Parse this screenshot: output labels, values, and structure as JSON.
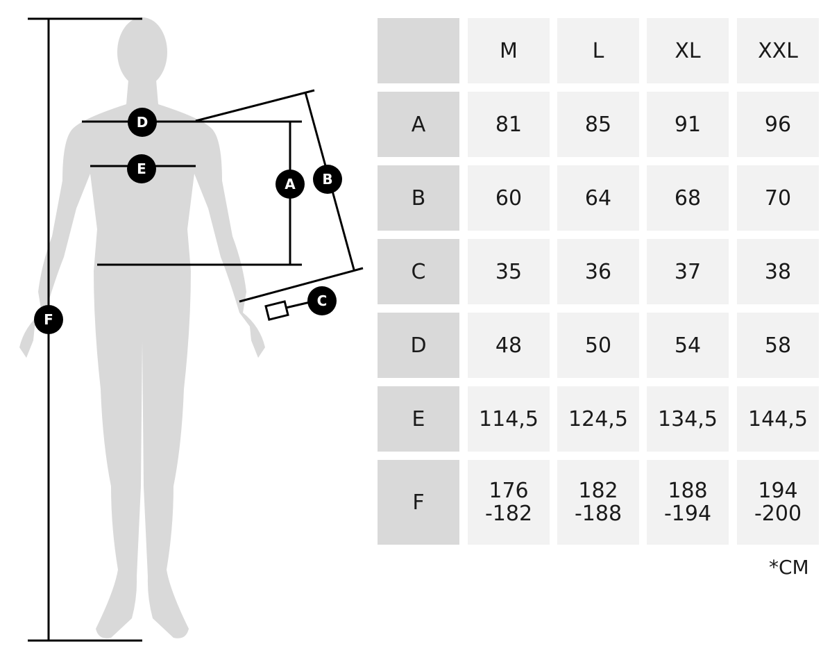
{
  "figure": {
    "markers": [
      "A",
      "B",
      "C",
      "D",
      "E",
      "F"
    ],
    "silhouette_color": "#d9d9d9",
    "line_color": "#000000"
  },
  "table": {
    "columns": [
      "",
      "M",
      "L",
      "XL",
      "XXL"
    ],
    "rows": [
      {
        "label": "A",
        "values": [
          "81",
          "85",
          "91",
          "96"
        ]
      },
      {
        "label": "B",
        "values": [
          "60",
          "64",
          "68",
          "70"
        ]
      },
      {
        "label": "C",
        "values": [
          "35",
          "36",
          "37",
          "38"
        ]
      },
      {
        "label": "D",
        "values": [
          "48",
          "50",
          "54",
          "58"
        ]
      },
      {
        "label": "E",
        "values": [
          "114,5",
          "124,5",
          "134,5",
          "144,5"
        ]
      },
      {
        "label": "F",
        "values": [
          "176\n-182",
          "182\n-188",
          "188\n-194",
          "194\n-200"
        ]
      }
    ],
    "header_color": "#d9d9d9",
    "cell_color": "#f2f2f2"
  },
  "unit_note": "*CM"
}
